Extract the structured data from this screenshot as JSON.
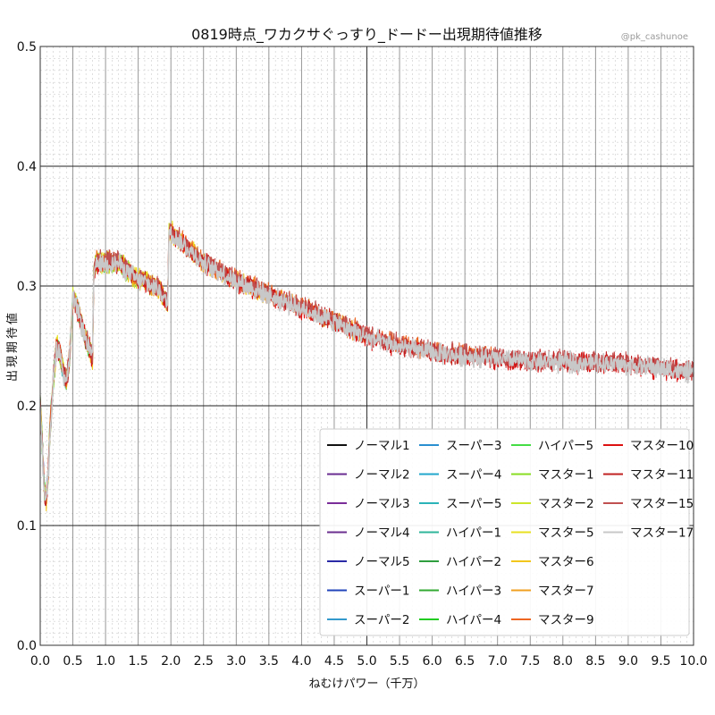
{
  "chart_data": {
    "type": "line",
    "title": "0819時点_ワカクサぐっすり_ドードー出現期待値推移",
    "credit": "@pk_cashunoe",
    "xlabel": "ねむけパワー（千万）",
    "ylabel": "出現期待値",
    "xlim": [
      0.0,
      10.0
    ],
    "ylim": [
      0.0,
      0.5
    ],
    "x_ticks": [
      "0.0",
      "0.5",
      "1.0",
      "1.5",
      "2.0",
      "2.5",
      "3.0",
      "3.5",
      "4.0",
      "4.5",
      "5.0",
      "5.5",
      "6.0",
      "6.5",
      "7.0",
      "7.5",
      "8.0",
      "8.5",
      "9.0",
      "9.5",
      "10.0"
    ],
    "y_ticks": [
      "0.0",
      "0.1",
      "0.2",
      "0.3",
      "0.4",
      "0.5"
    ],
    "grid": true,
    "legend_position": "lower-right",
    "legend_columns": 4,
    "series": [
      {
        "name": "ノーマル1",
        "color": "#111111",
        "xmax": 0.05
      },
      {
        "name": "ノーマル2",
        "color": "#6a2c91",
        "xmax": 0.08
      },
      {
        "name": "ノーマル3",
        "color": "#7a2d99",
        "xmax": 0.1
      },
      {
        "name": "ノーマル4",
        "color": "#6b2f8f",
        "xmax": 0.12
      },
      {
        "name": "ノーマル5",
        "color": "#2a2aa6",
        "xmax": 0.15
      },
      {
        "name": "スーパー1",
        "color": "#2244bb",
        "xmax": 0.25
      },
      {
        "name": "スーパー2",
        "color": "#3399cc",
        "xmax": 0.3
      },
      {
        "name": "スーパー3",
        "color": "#2a8fd0",
        "xmax": 0.4
      },
      {
        "name": "スーパー4",
        "color": "#22a7cc",
        "xmax": 0.45
      },
      {
        "name": "スーパー5",
        "color": "#2bb3b8",
        "xmax": 0.5
      },
      {
        "name": "ハイパー1",
        "color": "#2fb59a",
        "xmax": 0.6
      },
      {
        "name": "ハイパー2",
        "color": "#2e9e3e",
        "xmax": 0.7
      },
      {
        "name": "ハイパー3",
        "color": "#33aa33",
        "xmax": 0.8
      },
      {
        "name": "ハイパー4",
        "color": "#22cc22",
        "xmax": 1.0
      },
      {
        "name": "ハイパー5",
        "color": "#44dd44",
        "xmax": 1.4
      },
      {
        "name": "マスター1",
        "color": "#88dd22",
        "xmax": 1.7
      },
      {
        "name": "マスター2",
        "color": "#cce62a",
        "xmax": 2.0
      },
      {
        "name": "マスター5",
        "color": "#e8e020",
        "xmax": 2.5
      },
      {
        "name": "マスター6",
        "color": "#f2c61c",
        "xmax": 3.5
      },
      {
        "name": "マスター7",
        "color": "#f0a020",
        "xmax": 5.0
      },
      {
        "name": "マスター9",
        "color": "#ee6622",
        "xmax": 7.0
      },
      {
        "name": "マスター10",
        "color": "#dd1111",
        "xmax": 10.0
      },
      {
        "name": "マスター11",
        "color": "#c02222",
        "xmax": 10.0
      },
      {
        "name": "マスター15",
        "color": "#c05050",
        "xmax": 10.0
      },
      {
        "name": "マスター17",
        "color": "#c8c8c8",
        "xmax": 10.0
      }
    ],
    "trend": {
      "x": [
        0.0,
        0.03,
        0.06,
        0.09,
        0.12,
        0.15,
        0.2,
        0.25,
        0.3,
        0.35,
        0.4,
        0.45,
        0.5,
        0.55,
        0.6,
        0.65,
        0.7,
        0.75,
        0.8,
        0.82,
        0.85,
        0.9,
        0.95,
        1.0,
        1.1,
        1.2,
        1.3,
        1.4,
        1.5,
        1.6,
        1.7,
        1.8,
        1.9,
        1.95,
        1.97,
        2.0,
        2.2,
        2.5,
        3.0,
        3.5,
        4.0,
        4.5,
        5.0,
        5.5,
        6.0,
        6.5,
        7.0,
        7.5,
        8.0,
        8.5,
        9.0,
        9.5,
        10.0
      ],
      "y": [
        0.2,
        0.17,
        0.13,
        0.12,
        0.14,
        0.18,
        0.22,
        0.25,
        0.245,
        0.23,
        0.22,
        0.24,
        0.29,
        0.285,
        0.275,
        0.265,
        0.255,
        0.25,
        0.24,
        0.31,
        0.32,
        0.32,
        0.32,
        0.32,
        0.32,
        0.32,
        0.315,
        0.31,
        0.305,
        0.305,
        0.3,
        0.3,
        0.29,
        0.285,
        0.345,
        0.345,
        0.335,
        0.32,
        0.305,
        0.293,
        0.282,
        0.271,
        0.258,
        0.25,
        0.245,
        0.242,
        0.24,
        0.238,
        0.237,
        0.237,
        0.235,
        0.232,
        0.228
      ]
    }
  }
}
